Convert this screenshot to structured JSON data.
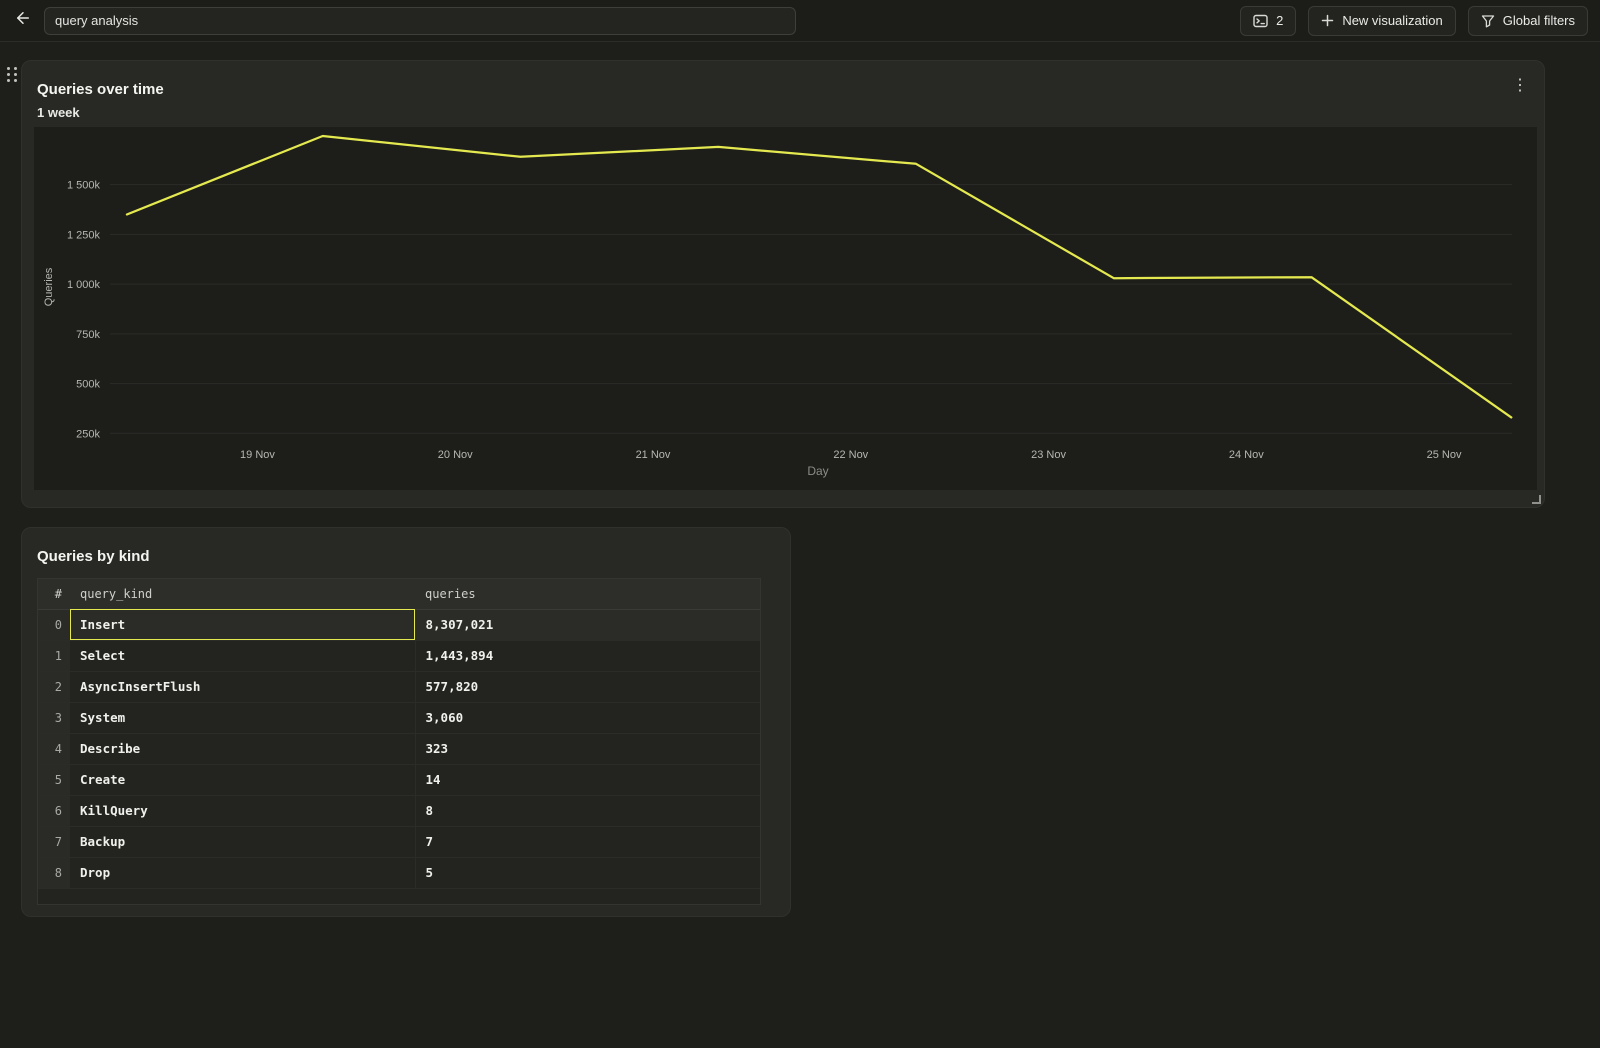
{
  "topbar": {
    "search_value": "query analysis",
    "console_count": "2",
    "new_visualization_label": "New visualization",
    "global_filters_label": "Global filters"
  },
  "icons": {
    "back": "arrow-left-icon",
    "console_button": "sql-console-icon",
    "new_visualization": "plus-icon",
    "global_filters": "funnel-icon",
    "card_menu": "kebab-vertical-icon",
    "drag": "drag-handle-dots-icon",
    "resize": "resize-corner-icon"
  },
  "colors": {
    "accent_yellow": "#e4e94f",
    "line": "#e4e94f",
    "selection_border": "#e4e94f",
    "page_bg": "#1e1e1b",
    "card_bg": "#282825",
    "plot_bg": "#1d1d1a"
  },
  "chart_card": {
    "title": "Queries over time",
    "subtitle": "1 week",
    "menu_icon": "⋮"
  },
  "chart_data": {
    "type": "line",
    "title": "Queries over time",
    "subtitle": "1 week",
    "xlabel": "Day",
    "ylabel": "Queries",
    "x_unit": "day of November",
    "grid": "horizontal-only",
    "legend": "none",
    "x_domain": [
      17.87,
      25.47
    ],
    "y_domain": [
      -35000,
      1790000
    ],
    "x_ticks": [
      {
        "day": 19,
        "label": "19 Nov"
      },
      {
        "day": 20,
        "label": "20 Nov"
      },
      {
        "day": 21,
        "label": "21 Nov"
      },
      {
        "day": 22,
        "label": "22 Nov"
      },
      {
        "day": 23,
        "label": "23 Nov"
      },
      {
        "day": 24,
        "label": "24 Nov"
      },
      {
        "day": 25,
        "label": "25 Nov"
      }
    ],
    "y_ticks": [
      {
        "value": 1500000,
        "label": "1 500k"
      },
      {
        "value": 1250000,
        "label": "1 250k"
      },
      {
        "value": 1000000,
        "label": "1 000k"
      },
      {
        "value": 750000,
        "label": "750k"
      },
      {
        "value": 500000,
        "label": "500k"
      },
      {
        "value": 250000,
        "label": "250k"
      }
    ],
    "series": [
      {
        "name": "Queries",
        "color": "#e4e94f",
        "points": [
          [
            18.34,
            1350000
          ],
          [
            19.33,
            1745000
          ],
          [
            20.33,
            1640000
          ],
          [
            21.33,
            1690000
          ],
          [
            22.33,
            1605000
          ],
          [
            23.33,
            1030000
          ],
          [
            24.33,
            1035000
          ],
          [
            25.34,
            330000
          ]
        ]
      }
    ]
  },
  "table_card": {
    "title": "Queries by kind",
    "columns": [
      "#",
      "query_kind",
      "queries"
    ],
    "rows": [
      {
        "index": "0",
        "query_kind": "Insert",
        "queries": "8,307,021",
        "selected": true
      },
      {
        "index": "1",
        "query_kind": "Select",
        "queries": "1,443,894",
        "selected": false
      },
      {
        "index": "2",
        "query_kind": "AsyncInsertFlush",
        "queries": "577,820",
        "selected": false
      },
      {
        "index": "3",
        "query_kind": "System",
        "queries": "3,060",
        "selected": false
      },
      {
        "index": "4",
        "query_kind": "Describe",
        "queries": "323",
        "selected": false
      },
      {
        "index": "5",
        "query_kind": "Create",
        "queries": "14",
        "selected": false
      },
      {
        "index": "6",
        "query_kind": "KillQuery",
        "queries": "8",
        "selected": false
      },
      {
        "index": "7",
        "query_kind": "Backup",
        "queries": "7",
        "selected": false
      },
      {
        "index": "8",
        "query_kind": "Drop",
        "queries": "5",
        "selected": false
      }
    ]
  }
}
